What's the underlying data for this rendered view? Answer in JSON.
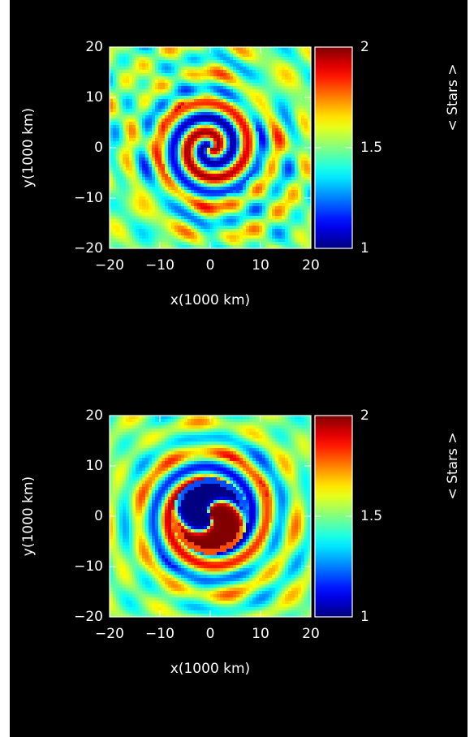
{
  "chart_data": [
    {
      "type": "heatmap",
      "xlabel": "x(1000 km)",
      "ylabel": "y(1000 km)",
      "xlim": [
        -20,
        20
      ],
      "ylim": [
        -20,
        20
      ],
      "xticks": [
        {
          "value": -20,
          "label": "−20"
        },
        {
          "value": -10,
          "label": "−10"
        },
        0,
        10,
        20
      ],
      "yticks": [
        {
          "value": -20,
          "label": "−20"
        },
        {
          "value": -10,
          "label": "−10"
        },
        0,
        10,
        20
      ],
      "colorbar": {
        "label": "< Stars >",
        "lim": [
          1,
          2
        ],
        "ticks": [
          1,
          1.5,
          2
        ],
        "colormap": "jet"
      }
    },
    {
      "type": "heatmap",
      "xlabel": "x(1000 km)",
      "ylabel": "y(1000 km)",
      "xlim": [
        -20,
        20
      ],
      "ylim": [
        -20,
        20
      ],
      "xticks": [
        {
          "value": -20,
          "label": "−20"
        },
        {
          "value": -10,
          "label": "−10"
        },
        0,
        10,
        20
      ],
      "yticks": [
        {
          "value": -20,
          "label": "−20"
        },
        {
          "value": -10,
          "label": "−10"
        },
        0,
        10,
        20
      ],
      "colorbar": {
        "label": "< Stars >",
        "lim": [
          1,
          2
        ],
        "ticks": [
          1,
          1.5,
          2
        ],
        "colormap": "jet"
      }
    }
  ]
}
